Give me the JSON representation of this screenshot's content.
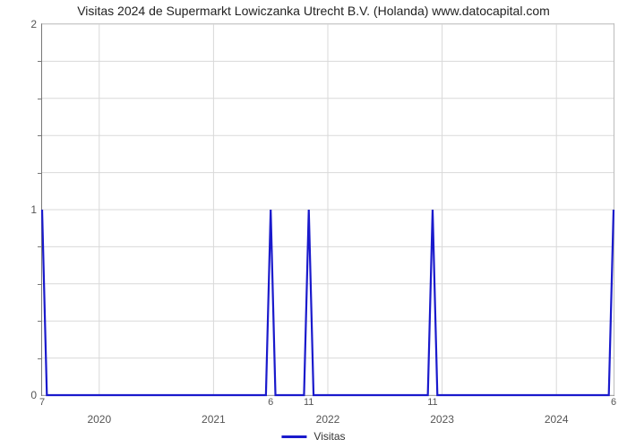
{
  "chart": {
    "type": "line",
    "title": "Visitas 2024 de Supermarkt Lowiczanka Utrecht B.V. (Holanda) www.datocapital.com",
    "title_fontsize": 14,
    "background_color": "#ffffff",
    "grid_color": "#d9d9d9",
    "axis_color": "#777777",
    "line_color": "#1a1acc",
    "line_width": 2.2,
    "ylim": [
      0,
      2
    ],
    "yticks": [
      0,
      1,
      2
    ],
    "yminor_count_between": 4,
    "xlim": [
      0,
      60
    ],
    "xticks": [
      {
        "x": 6,
        "label": "2020"
      },
      {
        "x": 18,
        "label": "2021"
      },
      {
        "x": 30,
        "label": "2022"
      },
      {
        "x": 42,
        "label": "2023"
      },
      {
        "x": 54,
        "label": "2024"
      }
    ],
    "series": {
      "name": "Visitas",
      "points": [
        {
          "x": 0,
          "y": 1,
          "label": "7"
        },
        {
          "x": 0.5,
          "y": 0
        },
        {
          "x": 23.5,
          "y": 0
        },
        {
          "x": 24,
          "y": 1,
          "label": "6"
        },
        {
          "x": 24.5,
          "y": 0
        },
        {
          "x": 27.5,
          "y": 0
        },
        {
          "x": 28,
          "y": 1,
          "label": "11"
        },
        {
          "x": 28.5,
          "y": 0
        },
        {
          "x": 40.5,
          "y": 0
        },
        {
          "x": 41,
          "y": 1,
          "label": "11"
        },
        {
          "x": 41.5,
          "y": 0
        },
        {
          "x": 59.5,
          "y": 0
        },
        {
          "x": 60,
          "y": 1,
          "label": "6"
        }
      ]
    },
    "legend": {
      "label": "Visitas"
    }
  }
}
